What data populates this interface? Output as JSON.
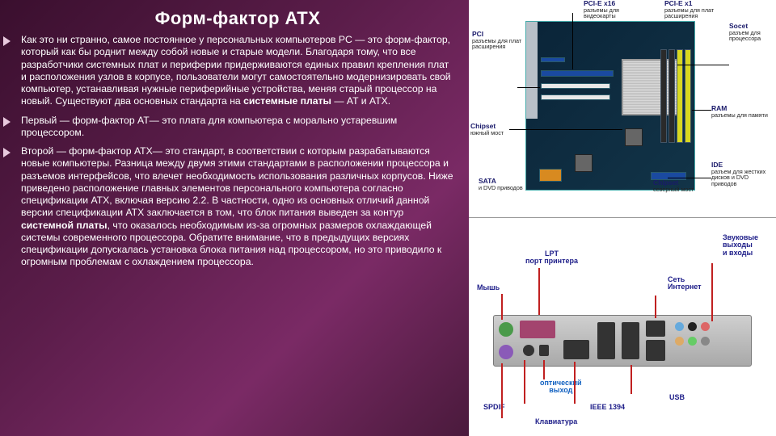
{
  "title": "Форм-фактор ATX",
  "paragraphs": [
    "Как это ни странно, самое постоянное у персональных компьютеров PC — это форм-фактор, который как бы роднит между собой новые и старые модели. Благодаря тому, что все разработчики системных плат и периферии придерживаются единых правил крепления плат и расположения узлов в корпусе, пользователи могут самостоятельно модернизировать свой компьютер, устанавливая нужные периферийные устройства, меняя старый процессор на новый. Существуют два основных стандарта на <b>системные платы</b> — AT и ATX.",
    "Первый — форм-фактор AT— это плата для компьютера с морально устаревшим процессором.",
    "Второй — форм-фактор ATX— это стандарт, в соответствии с которым разрабатываются новые компьютеры. Разница между двумя этими стандартами в расположении процессора и разъемов интерфейсов, что влечет необходимость использования различных корпусов. Ниже приведено расположение главных элементов персонального компьютера согласно спецификации ATX, включая версию 2.2. В частности, одно из основных отличий данной версии спецификации ATX заключается в том, что блок питания выведен за контур <b>системной платы</b>, что оказалось необходимым из-за огромных размеров охлаждающей системы современного процессора. Обратите внимание, что в предыдущих версиях спецификации допускалась установка блока питания над процессором, но это приводило к огромным проблемам с охлаждением процессора."
  ],
  "mobo_labels": {
    "pci": {
      "t": "PCI",
      "s": "разъемы для плат расширения"
    },
    "pcie_x16": {
      "t": "PCI-E x16",
      "s": "разъемы для видеокарты"
    },
    "pcie_x1": {
      "t": "PCI-E x1",
      "s": "разъемы для плат расширения"
    },
    "socket": {
      "t": "Socet",
      "s": "разъем для процессора"
    },
    "chipset_s": {
      "t": "Chipset",
      "s": "южный мост"
    },
    "chipset_n": {
      "t": "Chipset",
      "s": "северный мост"
    },
    "ram": {
      "t": "RAM",
      "s": "разъемы для памяти"
    },
    "sata": {
      "t": "SATA",
      "s": ""
    },
    "ide": {
      "t": "IDE",
      "s": "разъем для жестких дисков и DVD приводов"
    },
    "dvd": {
      "t": "",
      "s": "и DVD приводов"
    }
  },
  "io_labels": {
    "lpt": "LPT\nпорт принтера",
    "mouse": "Мышь",
    "spdif": "SPDIF",
    "kbd": "Клавиатура",
    "optical": "оптический\nвыход",
    "ieee": "IEEE 1394",
    "usb": "USB",
    "net": "Сеть\nИнтернет",
    "audio": "Звуковые\nвыходы\nи входы"
  },
  "colors": {
    "dimm": [
      "#d8d820",
      "#d8d820",
      "#2a2a2a",
      "#2a2a2a"
    ],
    "pcie16": "#1a4aa0",
    "pci": "#e8e8e8",
    "sata": "#d88a20"
  }
}
